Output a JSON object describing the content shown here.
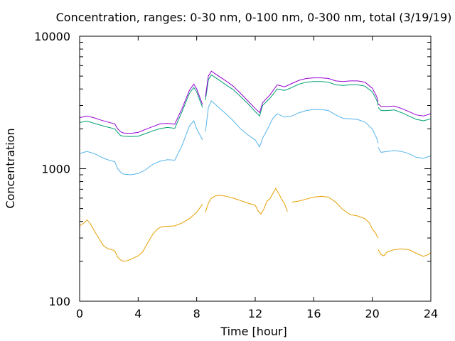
{
  "chart_data": {
    "type": "line",
    "title": "Concentration, ranges: 0-30 nm, 0-100 nm, 0-300 nm, total (3/19/19)",
    "xlabel": "Time [hour]",
    "ylabel": "Concentration",
    "xlim": [
      0,
      24
    ],
    "ylim": [
      100,
      10000
    ],
    "yscale": "log",
    "grid": false,
    "legend": "none",
    "x_ticks": [
      "0",
      "4",
      "8",
      "12",
      "16",
      "20",
      "24"
    ],
    "x_tick_values": [
      0,
      4,
      8,
      12,
      16,
      20,
      24
    ],
    "y_ticks": [
      "100",
      "1000",
      "10000"
    ],
    "y_tick_values": [
      100,
      1000,
      10000
    ],
    "series": [
      {
        "color": "#e69f00",
        "segments": [
          [
            [
              0.0,
              370
            ],
            [
              0.3,
              390
            ],
            [
              0.5,
              410
            ],
            [
              0.7,
              390
            ],
            [
              1.0,
              340
            ],
            [
              1.3,
              300
            ],
            [
              1.6,
              265
            ],
            [
              1.9,
              250
            ],
            [
              2.2,
              245
            ],
            [
              2.4,
              240
            ],
            [
              2.6,
              215
            ],
            [
              2.8,
              205
            ],
            [
              3.0,
              200
            ],
            [
              3.3,
              203
            ],
            [
              3.6,
              210
            ],
            [
              4.0,
              220
            ],
            [
              4.3,
              235
            ],
            [
              4.6,
              270
            ],
            [
              5.0,
              320
            ],
            [
              5.3,
              350
            ],
            [
              5.6,
              365
            ],
            [
              6.0,
              368
            ],
            [
              6.5,
              370
            ],
            [
              7.0,
              390
            ],
            [
              7.5,
              420
            ],
            [
              8.0,
              470
            ],
            [
              8.4,
              540
            ]
          ],
          [
            [
              8.6,
              470
            ],
            [
              8.8,
              550
            ],
            [
              9.0,
              600
            ],
            [
              9.3,
              625
            ],
            [
              9.6,
              630
            ],
            [
              10.0,
              620
            ],
            [
              10.5,
              600
            ],
            [
              11.0,
              575
            ],
            [
              11.5,
              550
            ],
            [
              12.0,
              530
            ],
            [
              12.2,
              480
            ],
            [
              12.4,
              455
            ],
            [
              12.6,
              500
            ],
            [
              12.8,
              570
            ],
            [
              13.0,
              590
            ],
            [
              13.2,
              650
            ],
            [
              13.4,
              710
            ],
            [
              13.6,
              650
            ],
            [
              13.8,
              590
            ],
            [
              14.0,
              545
            ],
            [
              14.2,
              475
            ]
          ],
          [
            [
              14.5,
              560
            ],
            [
              15.0,
              570
            ],
            [
              15.5,
              590
            ],
            [
              16.0,
              610
            ],
            [
              16.5,
              620
            ],
            [
              17.0,
              610
            ],
            [
              17.5,
              560
            ],
            [
              18.0,
              490
            ],
            [
              18.5,
              450
            ],
            [
              19.0,
              440
            ],
            [
              19.5,
              420
            ],
            [
              19.8,
              390
            ],
            [
              20.0,
              350
            ],
            [
              20.2,
              330
            ],
            [
              20.4,
              300
            ]
          ],
          [
            [
              20.4,
              245
            ],
            [
              20.6,
              225
            ],
            [
              20.8,
              220
            ],
            [
              21.0,
              235
            ],
            [
              21.5,
              245
            ],
            [
              22.0,
              248
            ],
            [
              22.5,
              245
            ],
            [
              23.0,
              230
            ],
            [
              23.5,
              218
            ],
            [
              23.8,
              225
            ],
            [
              24.0,
              232
            ]
          ]
        ]
      },
      {
        "color": "#56b4e9",
        "segments": [
          [
            [
              0.0,
              1300
            ],
            [
              0.5,
              1350
            ],
            [
              1.0,
              1300
            ],
            [
              1.5,
              1220
            ],
            [
              2.0,
              1160
            ],
            [
              2.4,
              1130
            ],
            [
              2.6,
              1000
            ],
            [
              2.8,
              940
            ],
            [
              3.0,
              910
            ],
            [
              3.5,
              900
            ],
            [
              4.0,
              920
            ],
            [
              4.5,
              980
            ],
            [
              5.0,
              1080
            ],
            [
              5.5,
              1140
            ],
            [
              6.0,
              1170
            ],
            [
              6.5,
              1160
            ],
            [
              7.0,
              1500
            ],
            [
              7.5,
              2100
            ],
            [
              7.8,
              2300
            ],
            [
              8.0,
              2000
            ],
            [
              8.4,
              1650
            ]
          ],
          [
            [
              8.6,
              1900
            ],
            [
              8.8,
              2900
            ],
            [
              9.0,
              3250
            ],
            [
              9.5,
              2900
            ],
            [
              10.0,
              2600
            ],
            [
              10.5,
              2300
            ],
            [
              11.0,
              2000
            ],
            [
              11.5,
              1800
            ],
            [
              12.0,
              1650
            ],
            [
              12.3,
              1460
            ],
            [
              12.5,
              1700
            ],
            [
              12.8,
              1950
            ],
            [
              13.2,
              2400
            ],
            [
              13.5,
              2600
            ],
            [
              14.0,
              2450
            ],
            [
              14.5,
              2500
            ],
            [
              15.0,
              2650
            ],
            [
              15.5,
              2750
            ],
            [
              16.0,
              2800
            ],
            [
              16.5,
              2800
            ],
            [
              17.0,
              2750
            ],
            [
              17.5,
              2550
            ],
            [
              18.0,
              2400
            ],
            [
              18.5,
              2380
            ],
            [
              19.0,
              2350
            ],
            [
              19.5,
              2250
            ],
            [
              20.0,
              2000
            ],
            [
              20.3,
              1700
            ],
            [
              20.4,
              1550
            ]
          ],
          [
            [
              20.4,
              1450
            ],
            [
              20.6,
              1330
            ],
            [
              21.0,
              1350
            ],
            [
              21.5,
              1370
            ],
            [
              22.0,
              1350
            ],
            [
              22.5,
              1300
            ],
            [
              23.0,
              1220
            ],
            [
              23.5,
              1200
            ],
            [
              24.0,
              1250
            ]
          ]
        ]
      },
      {
        "color": "#009e73",
        "segments": [
          [
            [
              0.0,
              2230
            ],
            [
              0.5,
              2290
            ],
            [
              1.0,
              2200
            ],
            [
              1.5,
              2120
            ],
            [
              2.0,
              2050
            ],
            [
              2.4,
              2000
            ],
            [
              2.6,
              1880
            ],
            [
              2.8,
              1780
            ],
            [
              3.0,
              1760
            ],
            [
              3.5,
              1750
            ],
            [
              4.0,
              1760
            ],
            [
              4.5,
              1840
            ],
            [
              5.0,
              1930
            ],
            [
              5.5,
              2010
            ],
            [
              6.0,
              2050
            ],
            [
              6.5,
              2020
            ],
            [
              7.0,
              2700
            ],
            [
              7.5,
              3700
            ],
            [
              7.8,
              4100
            ],
            [
              8.0,
              3800
            ],
            [
              8.4,
              2900
            ]
          ],
          [
            [
              8.6,
              3300
            ],
            [
              8.8,
              4700
            ],
            [
              9.0,
              5100
            ],
            [
              9.5,
              4700
            ],
            [
              10.0,
              4300
            ],
            [
              10.5,
              3950
            ],
            [
              11.0,
              3500
            ],
            [
              11.5,
              3100
            ],
            [
              12.0,
              2700
            ],
            [
              12.3,
              2500
            ],
            [
              12.5,
              3000
            ],
            [
              13.0,
              3400
            ],
            [
              13.5,
              4000
            ],
            [
              14.0,
              3900
            ],
            [
              14.5,
              4100
            ],
            [
              15.0,
              4350
            ],
            [
              15.5,
              4500
            ],
            [
              16.0,
              4550
            ],
            [
              16.5,
              4550
            ],
            [
              17.0,
              4500
            ],
            [
              17.5,
              4300
            ],
            [
              18.0,
              4250
            ],
            [
              18.5,
              4300
            ],
            [
              19.0,
              4300
            ],
            [
              19.5,
              4200
            ],
            [
              20.0,
              3800
            ],
            [
              20.3,
              3300
            ],
            [
              20.4,
              3000
            ]
          ],
          [
            [
              20.4,
              2900
            ],
            [
              20.6,
              2750
            ],
            [
              21.0,
              2750
            ],
            [
              21.5,
              2780
            ],
            [
              22.0,
              2650
            ],
            [
              22.5,
              2500
            ],
            [
              23.0,
              2360
            ],
            [
              23.5,
              2300
            ],
            [
              24.0,
              2380
            ]
          ]
        ]
      },
      {
        "color": "#9400d3",
        "segments": [
          [
            [
              0.0,
              2430
            ],
            [
              0.5,
              2500
            ],
            [
              1.0,
              2420
            ],
            [
              1.5,
              2320
            ],
            [
              2.0,
              2240
            ],
            [
              2.4,
              2180
            ],
            [
              2.6,
              2000
            ],
            [
              2.8,
              1900
            ],
            [
              3.0,
              1860
            ],
            [
              3.5,
              1850
            ],
            [
              4.0,
              1880
            ],
            [
              4.5,
              1980
            ],
            [
              5.0,
              2080
            ],
            [
              5.5,
              2180
            ],
            [
              6.0,
              2200
            ],
            [
              6.5,
              2170
            ],
            [
              7.0,
              2850
            ],
            [
              7.5,
              3900
            ],
            [
              7.8,
              4350
            ],
            [
              8.0,
              4000
            ],
            [
              8.4,
              3050
            ]
          ],
          [
            [
              8.6,
              3500
            ],
            [
              8.8,
              5000
            ],
            [
              9.0,
              5450
            ],
            [
              9.5,
              5000
            ],
            [
              10.0,
              4600
            ],
            [
              10.5,
              4200
            ],
            [
              11.0,
              3700
            ],
            [
              11.5,
              3250
            ],
            [
              12.0,
              2850
            ],
            [
              12.3,
              2650
            ],
            [
              12.5,
              3150
            ],
            [
              13.0,
              3600
            ],
            [
              13.5,
              4300
            ],
            [
              14.0,
              4150
            ],
            [
              14.5,
              4400
            ],
            [
              15.0,
              4650
            ],
            [
              15.5,
              4800
            ],
            [
              16.0,
              4850
            ],
            [
              16.5,
              4850
            ],
            [
              17.0,
              4800
            ],
            [
              17.5,
              4600
            ],
            [
              18.0,
              4550
            ],
            [
              18.5,
              4600
            ],
            [
              19.0,
              4600
            ],
            [
              19.5,
              4500
            ],
            [
              20.0,
              4050
            ],
            [
              20.3,
              3500
            ],
            [
              20.4,
              3200
            ]
          ],
          [
            [
              20.4,
              3100
            ],
            [
              20.6,
              2950
            ],
            [
              21.0,
              2950
            ],
            [
              21.5,
              2970
            ],
            [
              22.0,
              2850
            ],
            [
              22.5,
              2700
            ],
            [
              23.0,
              2550
            ],
            [
              23.5,
              2500
            ],
            [
              24.0,
              2600
            ]
          ]
        ]
      }
    ]
  }
}
